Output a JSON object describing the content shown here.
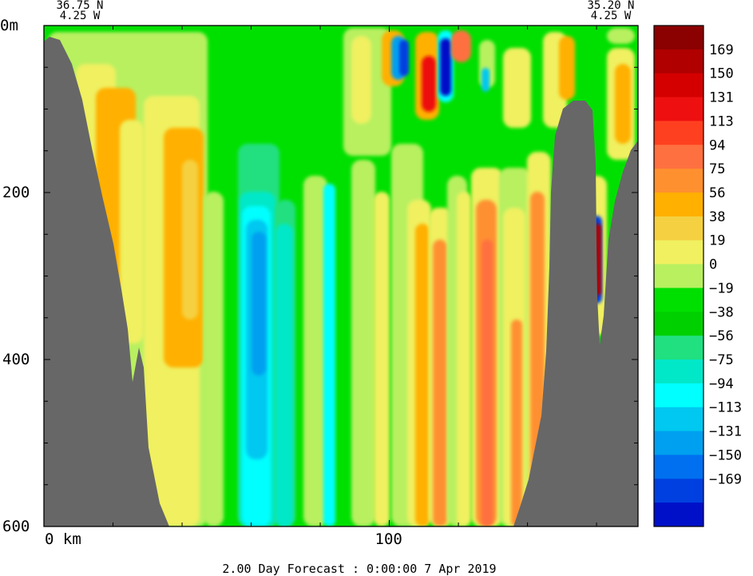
{
  "chart_data": {
    "type": "heatmap",
    "corner_labels": {
      "left_lat": "36.75 N",
      "left_lon": "4.25 W",
      "right_lat": "35.20 N",
      "right_lon": "4.25 W"
    },
    "depth_ticks": [
      {
        "value": 0,
        "label": "0m"
      },
      {
        "value": 200,
        "label": "200"
      },
      {
        "value": 400,
        "label": "400"
      },
      {
        "value": 600,
        "label": "600"
      }
    ],
    "depth_range": [
      0,
      600
    ],
    "distance_ticks": [
      {
        "value": 0,
        "label": "0 km"
      },
      {
        "value": 100,
        "label": "100"
      }
    ],
    "distance_range": [
      0,
      172
    ],
    "footer": "2.00 Day Forecast :  0:00:00   7 Apr 2019",
    "colorbar": {
      "labels": [
        "169",
        "150",
        "131",
        "113",
        "94",
        "75",
        "56",
        "38",
        "19",
        "0",
        "-19",
        "-38",
        "-56",
        "-75",
        "-94",
        "-113",
        "-131",
        "-150",
        "-169"
      ],
      "colors": [
        "#8b0000",
        "#b00000",
        "#d40000",
        "#ee1010",
        "#ff4020",
        "#ff7040",
        "#ff9030",
        "#ffb000",
        "#f5d040",
        "#f0f060",
        "#b8f060",
        "#00e000",
        "#00d000",
        "#20e080",
        "#00e8c8",
        "#00ffff",
        "#00c8f0",
        "#00a0f0",
        "#0070f0",
        "#0040e0",
        "#0010c8"
      ]
    },
    "colors": {
      "land": "#676767",
      "background": "#00e000"
    }
  }
}
